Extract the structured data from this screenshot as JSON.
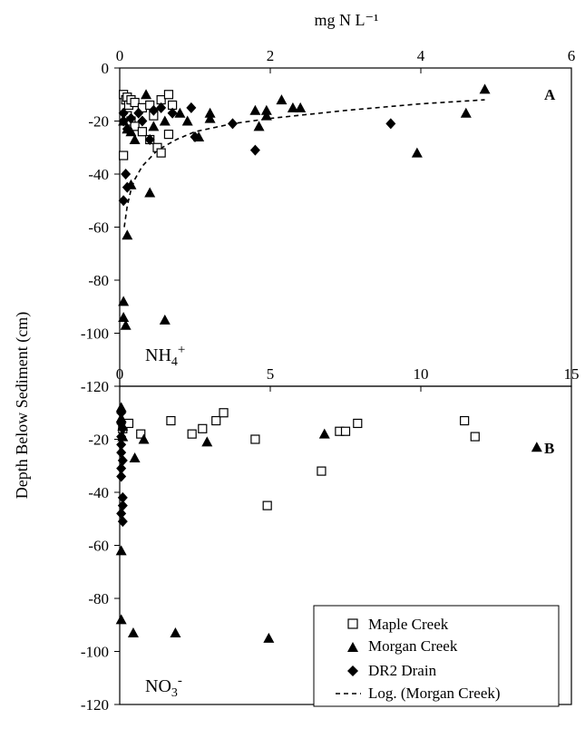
{
  "top_axis_title": "mg N L⁻¹",
  "y_axis_title": "Depth Below Sediment (cm)",
  "legend": {
    "items": [
      {
        "label": "Maple Creek",
        "marker": "open-square"
      },
      {
        "label": "Morgan Creek",
        "marker": "filled-triangle"
      },
      {
        "label": "DR2 Drain",
        "marker": "filled-diamond"
      },
      {
        "label": "Log. (Morgan Creek)",
        "marker": "dashed-line"
      }
    ]
  },
  "chart_data": [
    {
      "type": "scatter",
      "panel_letter": "A",
      "ion_label": "NH4+",
      "xlabel": "mg N L⁻¹",
      "ylabel": "Depth Below Sediment (cm)",
      "xlim": [
        0,
        6
      ],
      "ylim": [
        -120,
        0
      ],
      "xticks": [
        0,
        2,
        4,
        6
      ],
      "yticks": [
        0,
        -20,
        -40,
        -60,
        -80,
        -100,
        -120
      ],
      "series": [
        {
          "name": "Maple Creek",
          "marker": "open-square",
          "points": [
            [
              0.05,
              -10
            ],
            [
              0.08,
              -12
            ],
            [
              0.1,
              -11
            ],
            [
              0.12,
              -14
            ],
            [
              0.15,
              -12
            ],
            [
              0.2,
              -13
            ],
            [
              0.3,
              -15
            ],
            [
              0.4,
              -14
            ],
            [
              0.45,
              -18
            ],
            [
              0.55,
              -12
            ],
            [
              0.65,
              -10
            ],
            [
              0.7,
              -14
            ],
            [
              0.1,
              -18
            ],
            [
              0.15,
              -20
            ],
            [
              0.2,
              -22
            ],
            [
              0.3,
              -24
            ],
            [
              0.4,
              -27
            ],
            [
              0.5,
              -30
            ],
            [
              0.55,
              -32
            ],
            [
              0.65,
              -25
            ],
            [
              0.05,
              -33
            ]
          ]
        },
        {
          "name": "Morgan Creek",
          "marker": "filled-triangle",
          "points": [
            [
              4.85,
              -8
            ],
            [
              4.6,
              -17
            ],
            [
              3.95,
              -32
            ],
            [
              2.4,
              -15
            ],
            [
              2.3,
              -15
            ],
            [
              2.15,
              -12
            ],
            [
              1.95,
              -18
            ],
            [
              1.85,
              -22
            ],
            [
              1.95,
              -16
            ],
            [
              1.8,
              -16
            ],
            [
              1.2,
              -17
            ],
            [
              1.2,
              -19
            ],
            [
              1.05,
              -26
            ],
            [
              0.9,
              -20
            ],
            [
              0.8,
              -17
            ],
            [
              0.6,
              -20
            ],
            [
              0.45,
              -22
            ],
            [
              0.35,
              -10
            ],
            [
              0.2,
              -27
            ],
            [
              0.15,
              -24
            ],
            [
              0.1,
              -23
            ],
            [
              0.05,
              -20
            ],
            [
              0.15,
              -44
            ],
            [
              0.4,
              -47
            ],
            [
              0.1,
              -63
            ],
            [
              0.05,
              -88
            ],
            [
              0.05,
              -94
            ],
            [
              0.08,
              -97
            ],
            [
              0.6,
              -95
            ]
          ]
        },
        {
          "name": "DR2 Drain",
          "marker": "filled-diamond",
          "points": [
            [
              0.05,
              -17
            ],
            [
              0.05,
              -20
            ],
            [
              0.08,
              -40
            ],
            [
              0.1,
              -45
            ],
            [
              0.05,
              -50
            ],
            [
              0.1,
              -23
            ],
            [
              0.15,
              -19
            ],
            [
              0.25,
              -17
            ],
            [
              0.3,
              -20
            ],
            [
              0.45,
              -16
            ],
            [
              0.55,
              -15
            ],
            [
              0.7,
              -17
            ],
            [
              0.95,
              -15
            ],
            [
              1.0,
              -26
            ],
            [
              1.5,
              -21
            ],
            [
              1.8,
              -31
            ],
            [
              3.6,
              -21
            ],
            [
              0.4,
              -27
            ]
          ]
        }
      ],
      "trendline": {
        "name": "Log. (Morgan Creek)",
        "type": "logarithmic",
        "points": [
          [
            0.06,
            -60
          ],
          [
            0.1,
            -52
          ],
          [
            0.15,
            -46
          ],
          [
            0.2,
            -42
          ],
          [
            0.3,
            -37
          ],
          [
            0.5,
            -31
          ],
          [
            0.75,
            -27
          ],
          [
            1.0,
            -24
          ],
          [
            1.5,
            -21
          ],
          [
            2.0,
            -19
          ],
          [
            3.0,
            -16
          ],
          [
            4.0,
            -13.5
          ],
          [
            4.85,
            -12
          ]
        ]
      }
    },
    {
      "type": "scatter",
      "panel_letter": "B",
      "ion_label": "NO3-",
      "xlim": [
        0,
        15
      ],
      "ylim": [
        -120,
        0
      ],
      "xticks": [
        0,
        5,
        10,
        15
      ],
      "yticks": [
        0,
        -20,
        -40,
        -60,
        -80,
        -100,
        -120
      ],
      "series": [
        {
          "name": "Maple Creek",
          "marker": "open-square",
          "points": [
            [
              0.1,
              -16
            ],
            [
              0.3,
              -14
            ],
            [
              0.7,
              -18
            ],
            [
              1.7,
              -13
            ],
            [
              2.4,
              -18
            ],
            [
              2.75,
              -16
            ],
            [
              3.2,
              -13
            ],
            [
              3.45,
              -10
            ],
            [
              4.5,
              -20
            ],
            [
              4.9,
              -45
            ],
            [
              6.7,
              -32
            ],
            [
              7.3,
              -17
            ],
            [
              7.5,
              -17
            ],
            [
              7.9,
              -14
            ],
            [
              11.45,
              -13
            ],
            [
              11.8,
              -19
            ]
          ]
        },
        {
          "name": "Morgan Creek",
          "marker": "filled-triangle",
          "points": [
            [
              0.05,
              -8
            ],
            [
              0.05,
              -12
            ],
            [
              0.1,
              -15
            ],
            [
              0.1,
              -19
            ],
            [
              0.5,
              -27
            ],
            [
              0.8,
              -20
            ],
            [
              2.9,
              -21
            ],
            [
              6.8,
              -18
            ],
            [
              13.85,
              -23
            ],
            [
              0.05,
              -62
            ],
            [
              0.05,
              -88
            ],
            [
              0.45,
              -93
            ],
            [
              1.85,
              -93
            ],
            [
              4.95,
              -95
            ]
          ]
        },
        {
          "name": "DR2 Drain",
          "marker": "filled-diamond",
          "points": [
            [
              0.05,
              -10
            ],
            [
              0.05,
              -14
            ],
            [
              0.1,
              -16
            ],
            [
              0.05,
              -19
            ],
            [
              0.05,
              -22
            ],
            [
              0.05,
              -25
            ],
            [
              0.1,
              -28
            ],
            [
              0.05,
              -31
            ],
            [
              0.05,
              -34
            ],
            [
              0.1,
              -42
            ],
            [
              0.1,
              -45
            ],
            [
              0.05,
              -48
            ],
            [
              0.1,
              -51
            ]
          ]
        }
      ]
    }
  ]
}
